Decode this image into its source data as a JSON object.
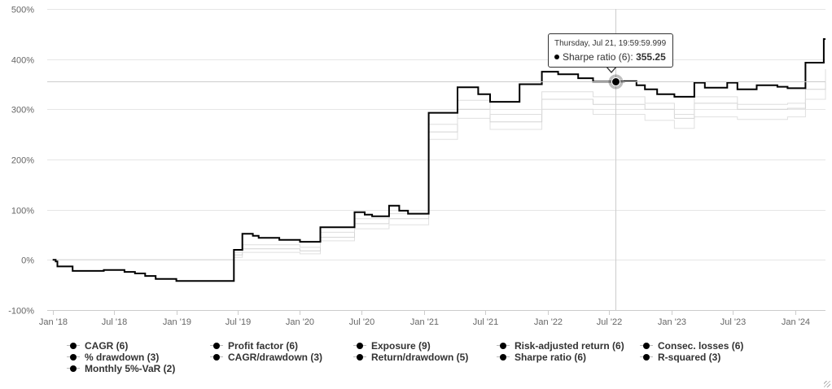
{
  "chart_data": {
    "type": "line",
    "step": true,
    "title": "",
    "xlabel": "",
    "ylabel": "",
    "grid": true,
    "legend_position": "bottom",
    "x_ticks": [
      "Jan '18",
      "Jul '18",
      "Jan '19",
      "Jul '19",
      "Jan '20",
      "Jul '20",
      "Jan '21",
      "Jul '21",
      "Jan '22",
      "Jul '22",
      "Jan '23",
      "Jul '23",
      "Jan '24"
    ],
    "y_ticks": [
      "500%",
      "400%",
      "300%",
      "200%",
      "100%",
      "0%",
      "-100%"
    ],
    "y_tick_values": [
      500,
      400,
      300,
      200,
      100,
      0,
      -100
    ],
    "xlim": [
      "2017-12-16",
      "2024-03-31"
    ],
    "ylim": [
      -100,
      500
    ],
    "series": [
      {
        "name": "Sharpe ratio (6)",
        "color": "#000000",
        "points": [
          [
            "2018-01-01",
            0
          ],
          [
            "2018-01-10",
            -3
          ],
          [
            "2018-01-15",
            -13
          ],
          [
            "2018-03-01",
            -22
          ],
          [
            "2018-06-01",
            -20
          ],
          [
            "2018-08-01",
            -24
          ],
          [
            "2018-09-01",
            -27
          ],
          [
            "2018-10-01",
            -32
          ],
          [
            "2018-11-01",
            -38
          ],
          [
            "2019-01-01",
            -42
          ],
          [
            "2019-06-01",
            -42
          ],
          [
            "2019-06-20",
            20
          ],
          [
            "2019-07-15",
            52
          ],
          [
            "2019-08-15",
            48
          ],
          [
            "2019-09-01",
            44
          ],
          [
            "2019-11-01",
            40
          ],
          [
            "2020-01-01",
            36
          ],
          [
            "2020-03-01",
            65
          ],
          [
            "2020-06-10",
            95
          ],
          [
            "2020-07-10",
            90
          ],
          [
            "2020-08-01",
            87
          ],
          [
            "2020-09-20",
            108
          ],
          [
            "2020-10-20",
            98
          ],
          [
            "2020-11-15",
            92
          ],
          [
            "2021-01-15",
            293
          ],
          [
            "2021-04-10",
            344
          ],
          [
            "2021-06-10",
            330
          ],
          [
            "2021-07-15",
            315
          ],
          [
            "2021-10-10",
            350
          ],
          [
            "2021-12-15",
            375
          ],
          [
            "2022-02-01",
            370
          ],
          [
            "2022-04-01",
            362
          ],
          [
            "2022-05-15",
            355
          ],
          [
            "2022-07-21",
            355.25
          ],
          [
            "2022-08-15",
            356
          ],
          [
            "2022-09-20",
            348
          ],
          [
            "2022-10-15",
            340
          ],
          [
            "2022-11-20",
            330
          ],
          [
            "2023-01-10",
            325
          ],
          [
            "2023-03-10",
            353
          ],
          [
            "2023-04-10",
            343
          ],
          [
            "2023-06-15",
            353
          ],
          [
            "2023-07-15",
            340
          ],
          [
            "2023-09-10",
            348
          ],
          [
            "2023-11-10",
            345
          ],
          [
            "2023-12-10",
            342
          ],
          [
            "2024-02-01",
            393
          ],
          [
            "2024-03-26",
            440
          ],
          [
            "2024-03-31",
            440
          ]
        ]
      },
      {
        "name": "",
        "color": "#dddddd",
        "points": [
          [
            "2018-01-01",
            0
          ],
          [
            "2019-06-20",
            15
          ],
          [
            "2019-07-15",
            30
          ],
          [
            "2020-01-01",
            25
          ],
          [
            "2020-03-01",
            55
          ],
          [
            "2020-06-10",
            82
          ],
          [
            "2020-09-20",
            92
          ],
          [
            "2021-01-15",
            270
          ],
          [
            "2021-04-10",
            318
          ],
          [
            "2021-07-15",
            290
          ],
          [
            "2021-12-15",
            335
          ],
          [
            "2022-05-15",
            325
          ],
          [
            "2022-10-15",
            312
          ],
          [
            "2023-01-10",
            290
          ],
          [
            "2023-03-10",
            325
          ],
          [
            "2023-07-15",
            310
          ],
          [
            "2023-12-10",
            312
          ],
          [
            "2024-02-01",
            355
          ],
          [
            "2024-03-31",
            380
          ]
        ]
      },
      {
        "name": "",
        "color": "#d4d4d4",
        "points": [
          [
            "2018-01-01",
            0
          ],
          [
            "2019-06-20",
            10
          ],
          [
            "2019-07-15",
            22
          ],
          [
            "2020-01-01",
            18
          ],
          [
            "2020-03-01",
            45
          ],
          [
            "2020-06-10",
            72
          ],
          [
            "2020-09-20",
            82
          ],
          [
            "2021-01-15",
            255
          ],
          [
            "2021-04-10",
            300
          ],
          [
            "2021-07-15",
            275
          ],
          [
            "2021-12-15",
            320
          ],
          [
            "2022-05-15",
            310
          ],
          [
            "2022-10-15",
            300
          ],
          [
            "2023-01-10",
            282
          ],
          [
            "2023-03-10",
            312
          ],
          [
            "2023-07-15",
            300
          ],
          [
            "2023-12-10",
            302
          ],
          [
            "2024-02-01",
            340
          ],
          [
            "2024-03-31",
            370
          ]
        ]
      },
      {
        "name": "",
        "color": "#e0e0e0",
        "points": [
          [
            "2018-01-01",
            0
          ],
          [
            "2019-06-20",
            5
          ],
          [
            "2019-07-15",
            15
          ],
          [
            "2020-01-01",
            12
          ],
          [
            "2020-03-01",
            38
          ],
          [
            "2020-06-10",
            62
          ],
          [
            "2020-09-20",
            70
          ],
          [
            "2021-01-15",
            240
          ],
          [
            "2021-04-10",
            282
          ],
          [
            "2021-07-15",
            260
          ],
          [
            "2021-12-15",
            300
          ],
          [
            "2022-05-15",
            290
          ],
          [
            "2022-10-15",
            278
          ],
          [
            "2023-01-10",
            262
          ],
          [
            "2023-03-10",
            285
          ],
          [
            "2023-07-15",
            280
          ],
          [
            "2023-12-10",
            285
          ],
          [
            "2024-02-01",
            320
          ],
          [
            "2024-03-31",
            350
          ]
        ]
      }
    ],
    "crosshair": {
      "x": "2022-07-21",
      "y": 355.25
    },
    "tooltip": {
      "date": "Thursday, Jul 21, 19:59:59.999",
      "series_label": "Sharpe ratio (6):",
      "value": "355.25"
    }
  },
  "legend": {
    "rows": [
      [
        "CAGR (6)",
        "Profit factor (6)",
        "Exposure (9)",
        "Risk-adjusted return (6)",
        "Consec. losses (6)"
      ],
      [
        "% drawdown (3)",
        "CAGR/drawdown (3)",
        "Return/drawdown (5)",
        "Sharpe ratio (6)",
        "R-squared (3)"
      ],
      [
        "Monthly 5%-VaR (2)"
      ]
    ]
  }
}
